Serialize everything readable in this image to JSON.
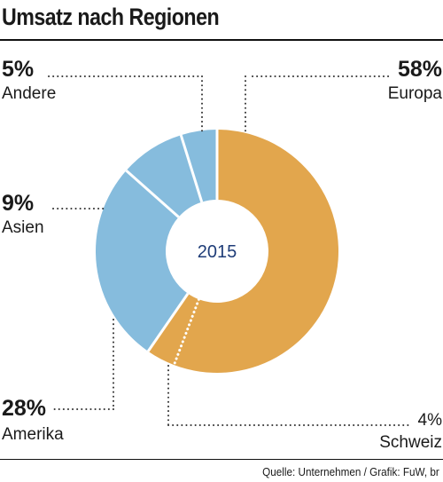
{
  "chart_data": {
    "type": "pie",
    "title": "Umsatz nach Regionen",
    "center_label": "2015",
    "source": "Quelle: Unternehmen / Grafik: FuW, br",
    "slices": [
      {
        "name": "Europa",
        "value": 58,
        "label": "58%",
        "color": "#E2A64D"
      },
      {
        "name": "Schweiz",
        "value": 4,
        "label": "4%",
        "color": "#E2A64D",
        "dotted_divider": true
      },
      {
        "name": "Amerika",
        "value": 28,
        "label": "28%",
        "color": "#86BCDD"
      },
      {
        "name": "Asien",
        "value": 9,
        "label": "9%",
        "color": "#86BCDD"
      },
      {
        "name": "Andere",
        "value": 5,
        "label": "5%",
        "color": "#86BCDD"
      }
    ]
  }
}
